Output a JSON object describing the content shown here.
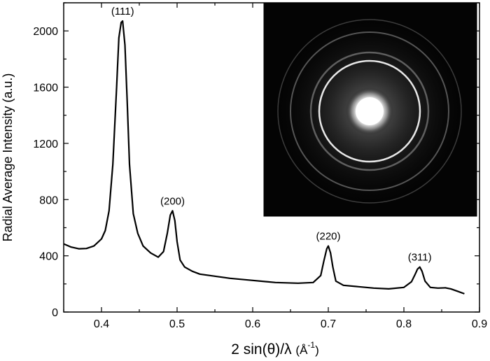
{
  "chart_data": {
    "type": "line",
    "title": "",
    "xlabel": "2 sin(θ)/λ (Å⁻¹)",
    "xlabel_parts": {
      "main": "2 sin(θ)/λ",
      "unit_open": "(Å",
      "unit_exp": "-1",
      "unit_close": ")"
    },
    "ylabel": "Radial Average Intensity (a.u.)",
    "xlim": [
      0.35,
      0.9
    ],
    "ylim": [
      0,
      2200
    ],
    "x_ticks": [
      0.4,
      0.5,
      0.6,
      0.7,
      0.8,
      0.9
    ],
    "x_tick_labels": [
      "0.4",
      "0.5",
      "0.6",
      "0.7",
      "0.8",
      "0.9"
    ],
    "y_ticks": [
      0,
      400,
      800,
      1200,
      1600,
      2000
    ],
    "y_tick_labels": [
      "0",
      "400",
      "800",
      "1200",
      "1600",
      "2000"
    ],
    "grid": false,
    "legend": "none",
    "series": [
      {
        "x": [
          0.35,
          0.36,
          0.37,
          0.38,
          0.39,
          0.4,
          0.405,
          0.41,
          0.415,
          0.42,
          0.423,
          0.426,
          0.428,
          0.431,
          0.434,
          0.437,
          0.442,
          0.448,
          0.455,
          0.465,
          0.475,
          0.482,
          0.487,
          0.491,
          0.494,
          0.497,
          0.5,
          0.504,
          0.51,
          0.52,
          0.53,
          0.55,
          0.57,
          0.6,
          0.63,
          0.66,
          0.68,
          0.69,
          0.694,
          0.698,
          0.7,
          0.703,
          0.706,
          0.71,
          0.72,
          0.74,
          0.76,
          0.78,
          0.8,
          0.81,
          0.815,
          0.818,
          0.821,
          0.824,
          0.828,
          0.835,
          0.845,
          0.855,
          0.862,
          0.87,
          0.88
        ],
        "values": [
          485,
          462,
          450,
          452,
          470,
          520,
          580,
          720,
          1050,
          1600,
          1950,
          2060,
          2070,
          1900,
          1500,
          1050,
          700,
          560,
          470,
          420,
          390,
          430,
          560,
          690,
          720,
          650,
          500,
          370,
          320,
          290,
          270,
          255,
          240,
          225,
          210,
          205,
          210,
          260,
          360,
          450,
          470,
          420,
          320,
          220,
          190,
          180,
          170,
          165,
          175,
          215,
          270,
          305,
          320,
          290,
          220,
          175,
          170,
          172,
          165,
          150,
          130
        ]
      }
    ],
    "annotations": [
      {
        "text": "(111)",
        "x": 0.428,
        "y": 2070
      },
      {
        "text": "(200)",
        "x": 0.494,
        "y": 720
      },
      {
        "text": "(220)",
        "x": 0.7,
        "y": 470
      },
      {
        "text": "(311)",
        "x": 0.821,
        "y": 320
      }
    ],
    "inset": {
      "type": "image",
      "description_name": "electron-diffraction-pattern"
    }
  }
}
